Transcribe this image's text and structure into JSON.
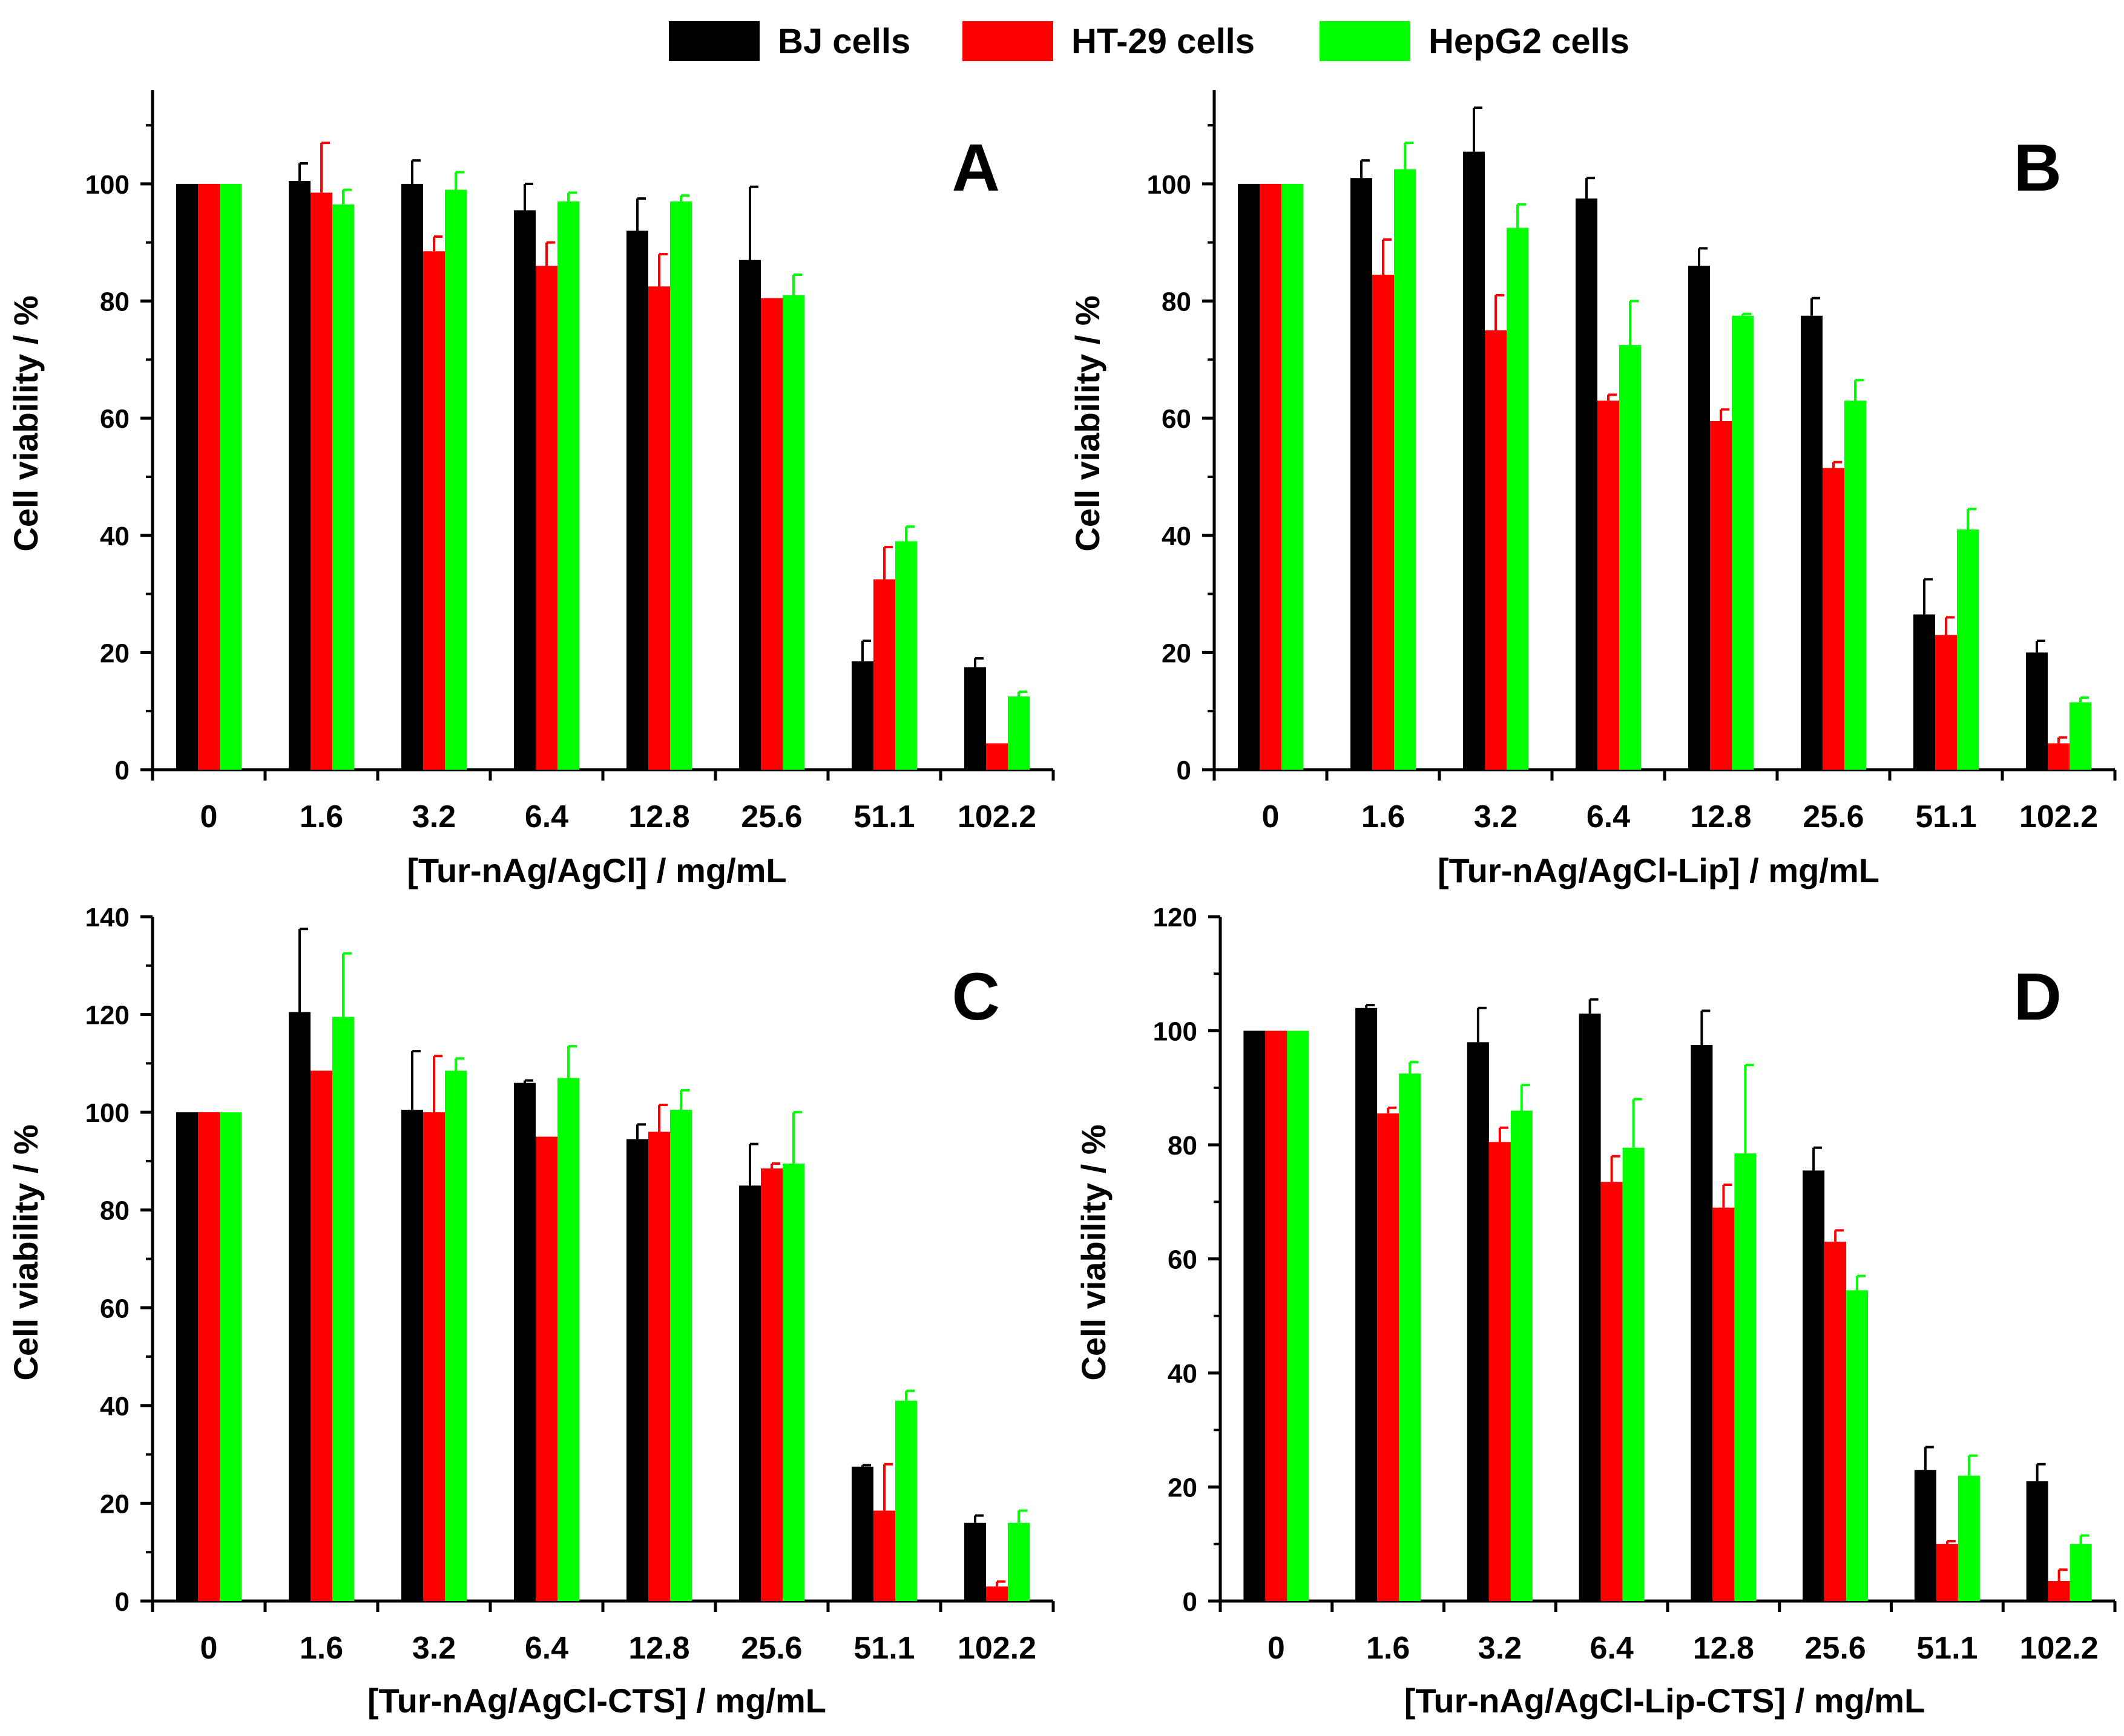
{
  "legend": [
    {
      "name": "BJ cells",
      "color": "#000000"
    },
    {
      "name": "HT-29 cells",
      "color": "#ff0000"
    },
    {
      "name": "HepG2 cells",
      "color": "#00ff00"
    }
  ],
  "colors": {
    "BJ cells": "#000000",
    "HT-29 cells": "#ff0000",
    "HepG2 cells": "#00ff00"
  },
  "chart_data": [
    {
      "type": "bar",
      "panel_label": "A",
      "categories": [
        "0",
        "1.6",
        "3.2",
        "6.4",
        "12.8",
        "25.6",
        "51.1",
        "102.2"
      ],
      "xlabel": "[Tur-nAg/AgCl]  /  mg/mL",
      "ylabel": "Cell viability  /  %",
      "ylim": [
        0,
        116
      ],
      "yticks": [
        0,
        20,
        40,
        60,
        80,
        100
      ],
      "series": [
        {
          "name": "BJ cells",
          "values": [
            100,
            100.5,
            100,
            95.5,
            92,
            87,
            18.5,
            17.5
          ],
          "errors": [
            0,
            3,
            4,
            4.5,
            5.5,
            12.5,
            3.5,
            1.5
          ]
        },
        {
          "name": "HT-29 cells",
          "values": [
            100,
            98.5,
            88.5,
            86,
            82.5,
            80.5,
            32.5,
            4.5
          ],
          "errors": [
            0,
            8.5,
            2.5,
            4,
            5.5,
            0,
            5.5,
            0
          ]
        },
        {
          "name": "HepG2 cells",
          "values": [
            100,
            96.5,
            99,
            97,
            97,
            81,
            39,
            12.5
          ],
          "errors": [
            0,
            2.5,
            3,
            1.5,
            1,
            3.5,
            2.5,
            0.8
          ]
        }
      ]
    },
    {
      "type": "bar",
      "panel_label": "B",
      "categories": [
        "0",
        "1.6",
        "3.2",
        "6.4",
        "12.8",
        "25.6",
        "51.1",
        "102.2"
      ],
      "xlabel": "[Tur-nAg/AgCl-Lip]  /  mg/mL",
      "ylabel": "Cell viability  /  %",
      "ylim": [
        0,
        116
      ],
      "yticks": [
        0,
        20,
        40,
        60,
        80,
        100
      ],
      "series": [
        {
          "name": "BJ cells",
          "values": [
            100,
            101,
            105.5,
            97.5,
            86,
            77.5,
            26.5,
            20
          ],
          "errors": [
            0,
            3,
            7.5,
            3.5,
            3,
            3,
            6,
            2
          ]
        },
        {
          "name": "HT-29 cells",
          "values": [
            100,
            84.5,
            75,
            63,
            59.5,
            51.5,
            23,
            4.5
          ],
          "errors": [
            0,
            6,
            6,
            1,
            2,
            1,
            3,
            1
          ]
        },
        {
          "name": "HepG2 cells",
          "values": [
            100,
            102.5,
            92.5,
            72.5,
            77.5,
            63,
            41,
            11.5
          ],
          "errors": [
            0,
            4.5,
            4,
            7.5,
            0.3,
            3.5,
            3.5,
            0.8
          ]
        }
      ]
    },
    {
      "type": "bar",
      "panel_label": "C",
      "categories": [
        "0",
        "1.6",
        "3.2",
        "6.4",
        "12.8",
        "25.6",
        "51.1",
        "102.2"
      ],
      "xlabel": "[Tur-nAg/AgCl-CTS]  /  mg/mL",
      "ylabel": "Cell viability  /  %",
      "ylim": [
        0,
        140
      ],
      "yticks": [
        0,
        20,
        40,
        60,
        80,
        100,
        120,
        140
      ],
      "series": [
        {
          "name": "BJ cells",
          "values": [
            100,
            120.5,
            100.5,
            106,
            94.5,
            85,
            27.5,
            16
          ],
          "errors": [
            0,
            17,
            12,
            0.5,
            3,
            8.5,
            0.3,
            1.5
          ]
        },
        {
          "name": "HT-29 cells",
          "values": [
            100,
            108.5,
            100,
            95,
            96,
            88.5,
            18.5,
            3
          ],
          "errors": [
            0,
            0,
            11.5,
            0,
            5.5,
            1,
            9.5,
            1
          ]
        },
        {
          "name": "HepG2 cells",
          "values": [
            100,
            119.5,
            108.5,
            107,
            100.5,
            89.5,
            41,
            16
          ],
          "errors": [
            0,
            13,
            2.5,
            6.5,
            4,
            10.5,
            2,
            2.5
          ]
        }
      ]
    },
    {
      "type": "bar",
      "panel_label": "D",
      "categories": [
        "0",
        "1.6",
        "3.2",
        "6.4",
        "12.8",
        "25.6",
        "51.1",
        "102.2"
      ],
      "xlabel": "[Tur-nAg/AgCl-Lip-CTS]  /  mg/mL",
      "ylabel": "Cell viability  /  %",
      "ylim": [
        0,
        120
      ],
      "yticks": [
        0,
        20,
        40,
        60,
        80,
        100,
        120
      ],
      "series": [
        {
          "name": "BJ cells",
          "values": [
            100,
            104,
            98,
            103,
            97.5,
            75.5,
            23,
            21
          ],
          "errors": [
            0,
            0.5,
            6,
            2.5,
            6,
            4,
            4,
            3
          ]
        },
        {
          "name": "HT-29 cells",
          "values": [
            100,
            85.5,
            80.5,
            73.5,
            69,
            63,
            10,
            3.5
          ],
          "errors": [
            0,
            1,
            2.5,
            4.5,
            4,
            2,
            0.5,
            2
          ]
        },
        {
          "name": "HepG2 cells",
          "values": [
            100,
            92.5,
            86,
            79.5,
            78.5,
            54.5,
            22,
            10
          ],
          "errors": [
            0,
            2,
            4.5,
            8.5,
            15.5,
            2.5,
            3.5,
            1.5
          ]
        }
      ]
    }
  ]
}
